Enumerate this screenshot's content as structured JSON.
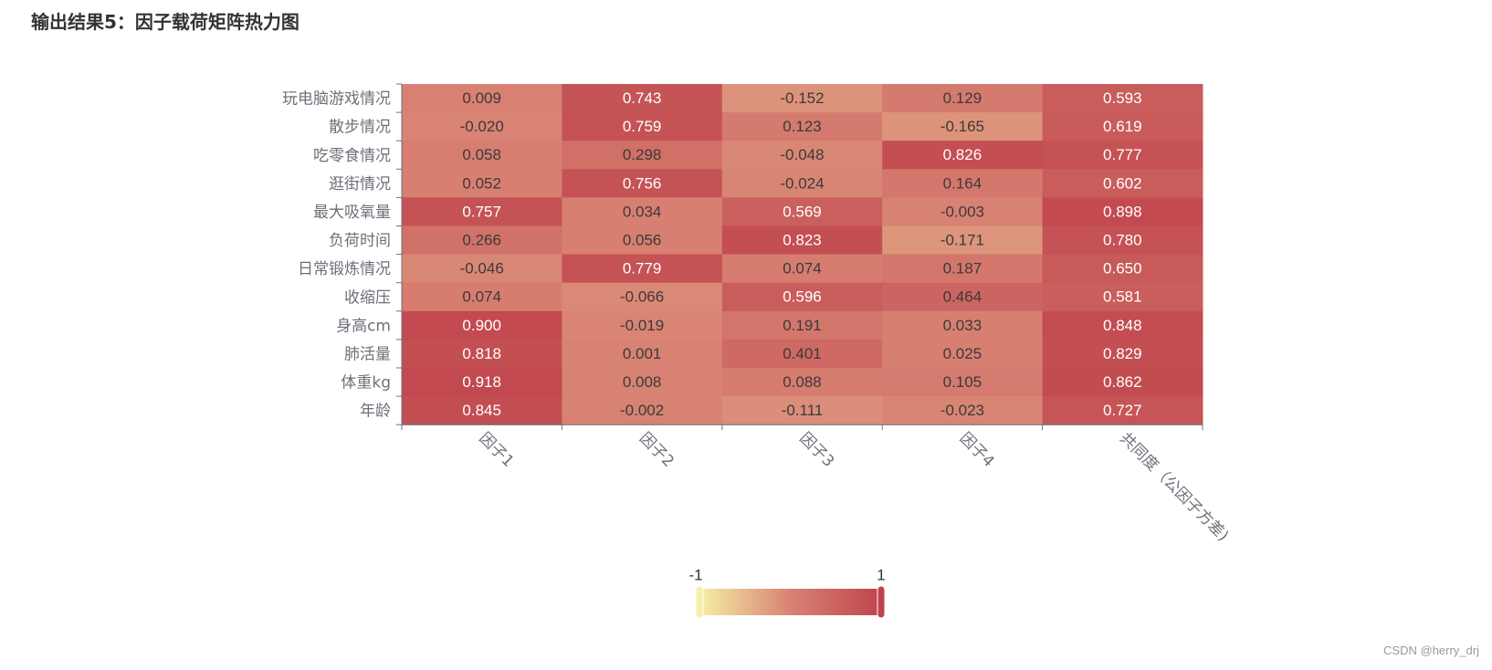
{
  "chart_data": {
    "type": "heatmap",
    "title": "输出结果5：因子载荷矩阵热力图",
    "x_categories": [
      "因子1",
      "因子2",
      "因子3",
      "因子4",
      "共同度（公因子方差)"
    ],
    "y_categories": [
      "玩电脑游戏情况",
      "散步情况",
      "吃零食情况",
      "逛街情况",
      "最大吸氧量",
      "负荷时间",
      "日常锻炼情况",
      "收缩压",
      "身高cm",
      "肺活量",
      "体重kg",
      "年龄"
    ],
    "values": [
      [
        0.009,
        0.743,
        -0.152,
        0.129,
        0.593
      ],
      [
        -0.02,
        0.759,
        0.123,
        -0.165,
        0.619
      ],
      [
        0.058,
        0.298,
        -0.048,
        0.826,
        0.777
      ],
      [
        0.052,
        0.756,
        -0.024,
        0.164,
        0.602
      ],
      [
        0.757,
        0.034,
        0.569,
        -0.003,
        0.898
      ],
      [
        0.266,
        0.056,
        0.823,
        -0.171,
        0.78
      ],
      [
        -0.046,
        0.779,
        0.074,
        0.187,
        0.65
      ],
      [
        0.074,
        -0.066,
        0.596,
        0.464,
        0.581
      ],
      [
        0.9,
        -0.019,
        0.191,
        0.033,
        0.848
      ],
      [
        0.818,
        0.001,
        0.401,
        0.025,
        0.829
      ],
      [
        0.918,
        0.008,
        0.088,
        0.105,
        0.862
      ],
      [
        0.845,
        -0.002,
        -0.111,
        -0.023,
        0.727
      ]
    ],
    "label_format": "3 decimals",
    "visual_map": {
      "min_label": "-1",
      "max_label": "1",
      "min": -1,
      "max": 1,
      "colors": [
        "#f6efa6",
        "#d88273",
        "#bf444c"
      ]
    },
    "grid": false,
    "legend": "bottom-center continuous color scale"
  },
  "watermark": "CSDN @herry_drj"
}
